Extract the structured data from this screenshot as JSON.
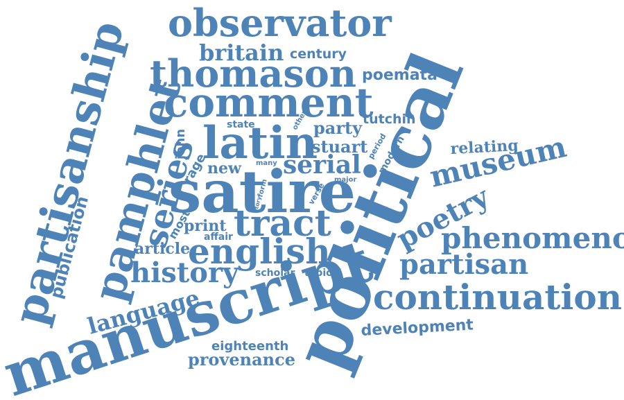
{
  "colors": {
    "background": "#ffffff",
    "word": "#4e83b8"
  },
  "words": [
    {
      "text": "political",
      "rank": 1
    },
    {
      "text": "satire",
      "rank": 2
    },
    {
      "text": "manuscript",
      "rank": 3
    },
    {
      "text": "partisanship",
      "rank": 4
    },
    {
      "text": "pamphlet",
      "rank": 5
    },
    {
      "text": "comment",
      "rank": 6
    },
    {
      "text": "thomason",
      "rank": 7
    },
    {
      "text": "latin",
      "rank": 8
    },
    {
      "text": "observator",
      "rank": 9
    },
    {
      "text": "english",
      "rank": 10
    },
    {
      "text": "tract",
      "rank": 11
    },
    {
      "text": "continuation",
      "rank": 12
    },
    {
      "text": "series",
      "rank": 13
    },
    {
      "text": "museum",
      "rank": 14
    },
    {
      "text": "phenomenon",
      "rank": 15
    },
    {
      "text": "partisan",
      "rank": 16
    },
    {
      "text": "poetry",
      "rank": 17
    },
    {
      "text": "history",
      "rank": 18
    },
    {
      "text": "serial",
      "rank": 19
    },
    {
      "text": "language",
      "rank": 20
    },
    {
      "text": "britain",
      "rank": 21
    },
    {
      "text": "publication",
      "rank": 22
    },
    {
      "text": "provenance",
      "rank": 23
    },
    {
      "text": "development",
      "rank": 24
    },
    {
      "text": "eighteenth",
      "rank": 25
    },
    {
      "text": "poemata",
      "rank": 26
    },
    {
      "text": "stuart",
      "rank": 27
    },
    {
      "text": "party",
      "rank": 28
    },
    {
      "text": "century",
      "rank": 29
    },
    {
      "text": "tutchin",
      "rank": 30
    },
    {
      "text": "relating",
      "rank": 31
    },
    {
      "text": "print",
      "rank": 32
    },
    {
      "text": "article",
      "rank": 33
    },
    {
      "text": "new",
      "rank": 34
    },
    {
      "text": "state",
      "rank": 35
    },
    {
      "text": "john",
      "rank": 36
    },
    {
      "text": "rage",
      "rank": 37
    },
    {
      "text": "affair",
      "rank": 38
    },
    {
      "text": "most",
      "rank": 39
    },
    {
      "text": "scholar",
      "rank": 40
    },
    {
      "text": "topical",
      "rank": 41
    },
    {
      "text": "modern",
      "rank": 42
    },
    {
      "text": "period",
      "rank": 43
    },
    {
      "text": "major",
      "rank": 44
    },
    {
      "text": "many",
      "rank": 45
    },
    {
      "text": "other",
      "rank": 46
    },
    {
      "text": "verse",
      "rank": 47
    },
    {
      "text": "form",
      "rank": 48
    },
    {
      "text": "tory",
      "rank": 49
    }
  ]
}
